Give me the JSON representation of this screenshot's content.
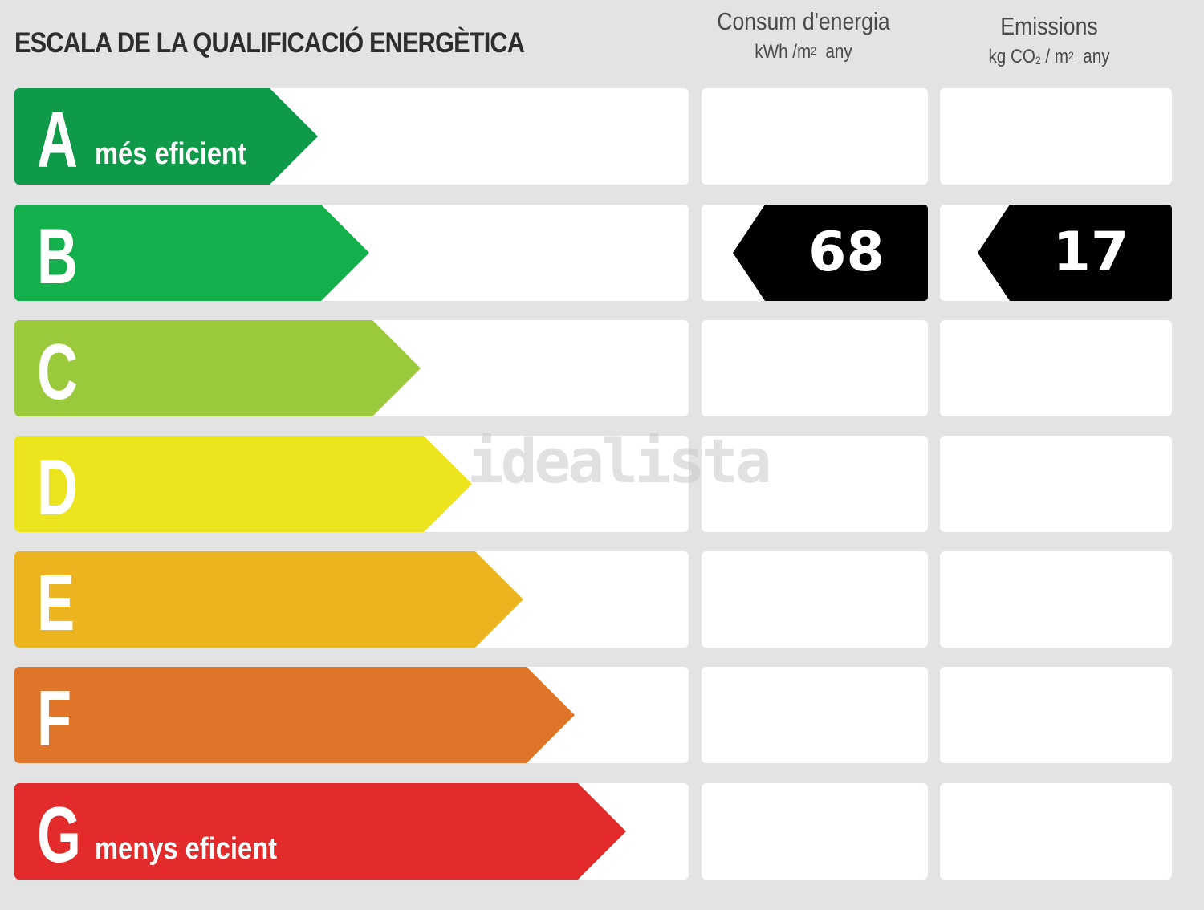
{
  "title": "ESCALA DE LA QUALIFICACIÓ ENERGÈTICA",
  "columns": {
    "energy": {
      "label": "Consum d'energia",
      "unit_pre": "kWh /m",
      "unit_sup": "2",
      "unit_post": "any"
    },
    "emissions": {
      "label": "Emissions",
      "unit_pre": "kg CO",
      "unit_sub": "2",
      "unit_mid": " / m",
      "unit_sup": "2",
      "unit_post": "any"
    }
  },
  "rows": [
    {
      "letter": "A",
      "sublabel": "més eficient",
      "color": "#0e9a48"
    },
    {
      "letter": "B",
      "sublabel": "",
      "color": "#13b04b"
    },
    {
      "letter": "C",
      "sublabel": "",
      "color": "#9aca3c"
    },
    {
      "letter": "D",
      "sublabel": "",
      "color": "#ebe41f"
    },
    {
      "letter": "E",
      "sublabel": "",
      "color": "#ecb41f"
    },
    {
      "letter": "F",
      "sublabel": "",
      "color": "#e07428"
    },
    {
      "letter": "G",
      "sublabel": "menys eficient",
      "color": "#e32b2b"
    }
  ],
  "rating": {
    "energy_class": "B",
    "energy_value": "68",
    "emissions_class": "B",
    "emissions_value": "17"
  },
  "watermark": "idealista"
}
